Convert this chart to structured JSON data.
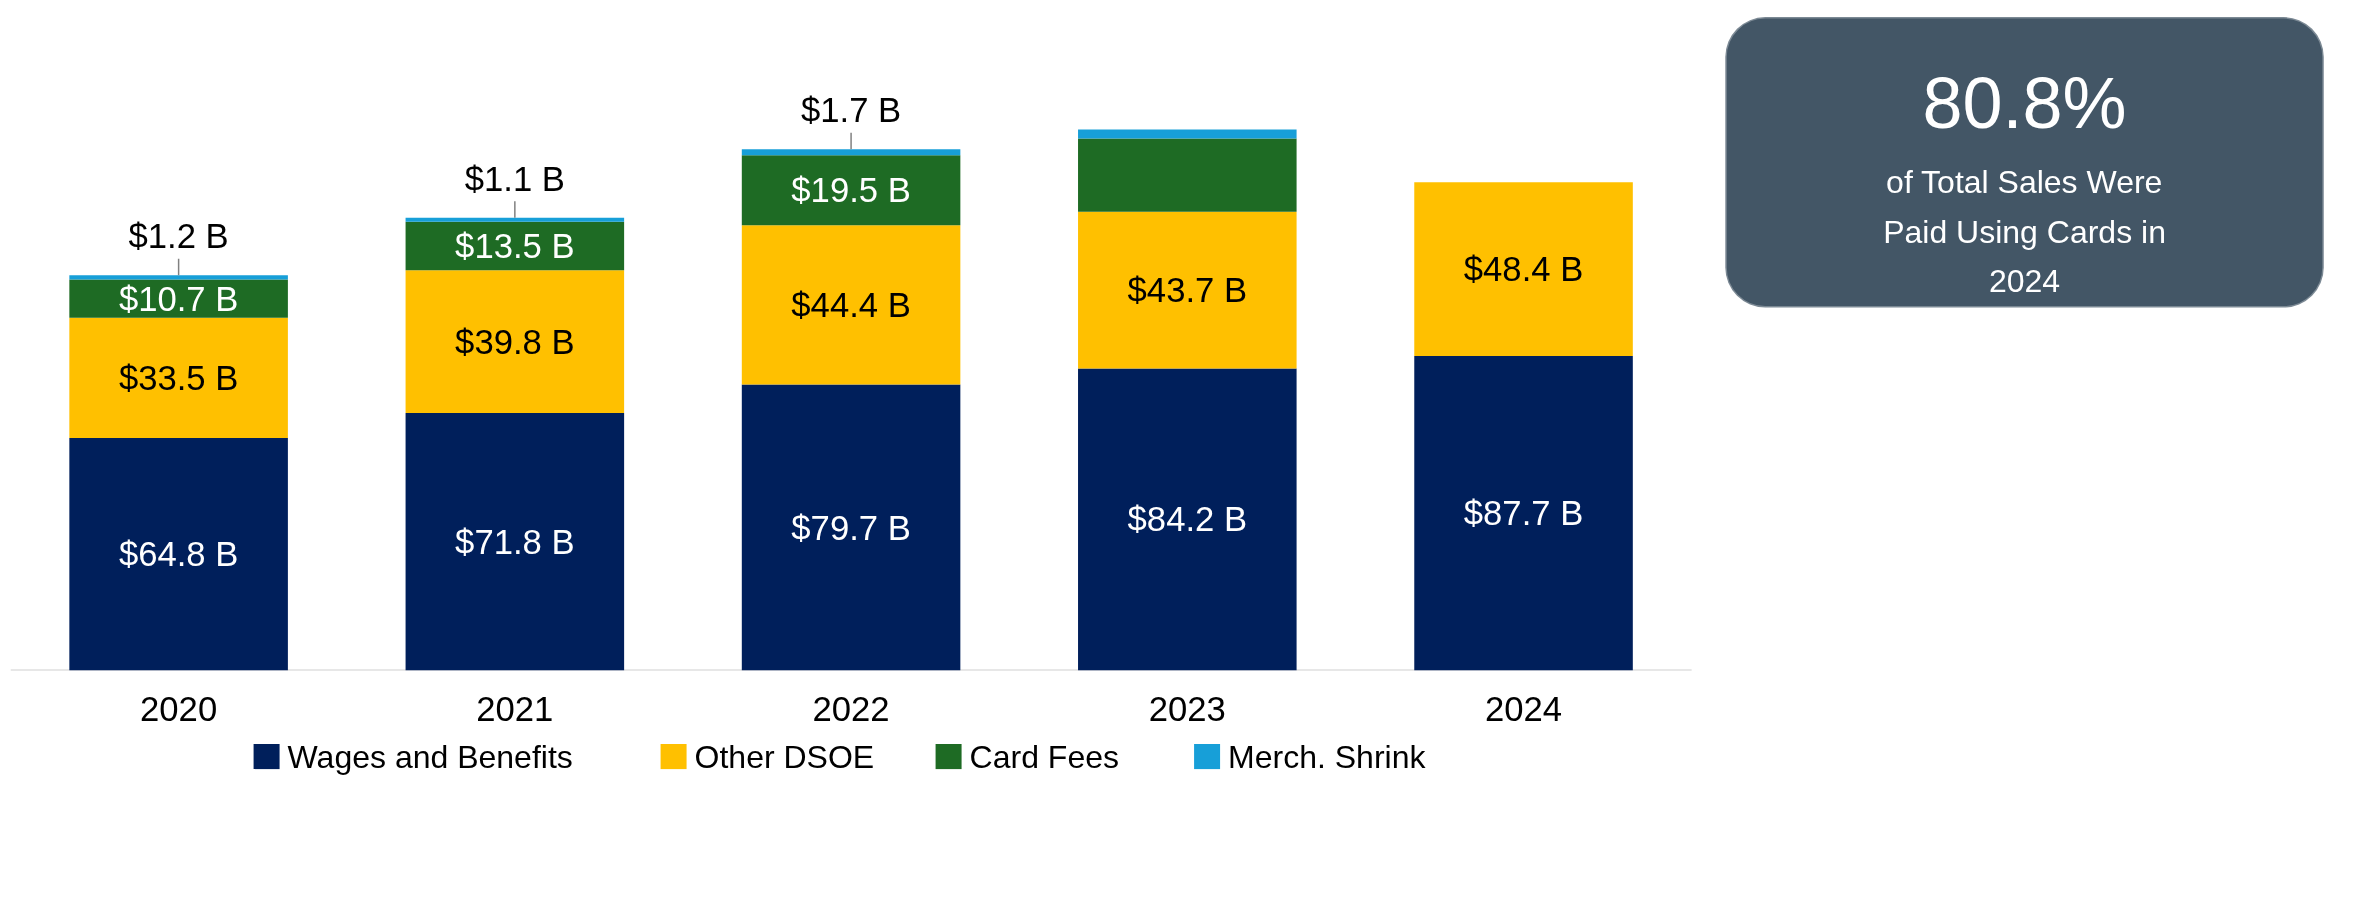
{
  "chart_data": {
    "type": "bar",
    "stacked": true,
    "legend": "bottom",
    "grid": false,
    "categories": [
      "2020",
      "2021",
      "2022",
      "2023",
      "2024"
    ],
    "series": [
      {
        "name": "Wages and Benefits",
        "color": "#001f5b",
        "values": [
          64.8,
          71.8,
          79.7,
          84.2,
          87.7
        ],
        "value_labels": [
          "$64.8 B",
          "$71.8 B",
          "$79.7 B",
          "$84.2 B",
          "$87.7 B"
        ]
      },
      {
        "name": "Other DSOE",
        "color": "#ffc000",
        "values": [
          33.5,
          39.8,
          44.4,
          43.7,
          48.4
        ],
        "value_labels": [
          "$33.5 B",
          "$39.8 B",
          "$44.4 B",
          "$43.7 B",
          "$48.4 B"
        ]
      },
      {
        "name": "Card Fees",
        "color": "#1e6b24",
        "values": [
          10.7,
          13.5,
          19.5,
          20.4,
          null
        ],
        "value_labels": [
          "$10.7 B",
          "$13.5 B",
          "$19.5 B",
          null,
          null
        ]
      },
      {
        "name": "Merch. Shrink",
        "color": "#179fd8",
        "values": [
          1.2,
          1.1,
          1.7,
          2.5,
          null
        ],
        "value_labels": [
          "$1.2 B",
          "$1.1 B",
          "$1.7 B",
          null,
          null
        ]
      }
    ],
    "annotations": [
      "80.8%",
      "of Total Sales Were Paid Using Cards in 2024"
    ]
  }
}
